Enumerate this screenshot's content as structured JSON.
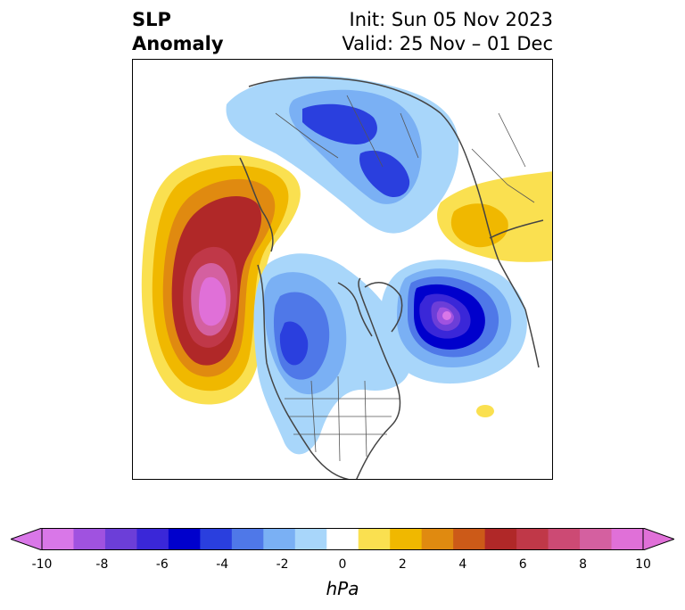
{
  "title": {
    "left_line1": "SLP",
    "left_line2": "Anomaly",
    "right_line1": "Init: Sun 05 Nov 2023",
    "right_line2": "Valid: 25 Nov – 01 Dec"
  },
  "colorbar": {
    "units": "hPa",
    "ticks": [
      "-10",
      "-8",
      "-6",
      "-4",
      "-2",
      "0",
      "2",
      "4",
      "6",
      "8",
      "10"
    ],
    "tick_values": [
      -10,
      -8,
      -6,
      -4,
      -2,
      0,
      2,
      4,
      6,
      8,
      10
    ],
    "levels": [
      -10,
      -9,
      -8,
      -7,
      -6,
      -5,
      -4,
      -3,
      -2,
      -1,
      1,
      2,
      3,
      4,
      5,
      6,
      7,
      8,
      9,
      10
    ],
    "colors": [
      "#d977e8",
      "#a052e0",
      "#6c3ed8",
      "#3a27d8",
      "#0000cc",
      "#2a3fde",
      "#4f78e8",
      "#7ab0f4",
      "#a8d6fa",
      "#ffffff",
      "#fae050",
      "#f0b800",
      "#e08a10",
      "#cc5a18",
      "#b02828",
      "#c03848",
      "#cc4a74",
      "#d460a0",
      "#e070d8"
    ],
    "extend": "both",
    "under_color": "#d977e8",
    "over_color": "#e070d8"
  },
  "map": {
    "projection": "north-polar-stereographic",
    "features": [
      "coastlines",
      "country-borders",
      "us-state-borders"
    ],
    "anomalies": [
      {
        "name": "NE Pacific / Gulf of Alaska high",
        "peak_hPa": 10,
        "sign": "positive"
      },
      {
        "name": "North Atlantic low",
        "peak_hPa": -9,
        "sign": "negative"
      },
      {
        "name": "Central North America low",
        "peak_hPa": -6,
        "sign": "negative"
      },
      {
        "name": "Siberia / Eurasia low",
        "peak_hPa": -6,
        "sign": "negative"
      },
      {
        "name": "Western Europe high",
        "peak_hPa": 3,
        "sign": "positive"
      }
    ]
  }
}
